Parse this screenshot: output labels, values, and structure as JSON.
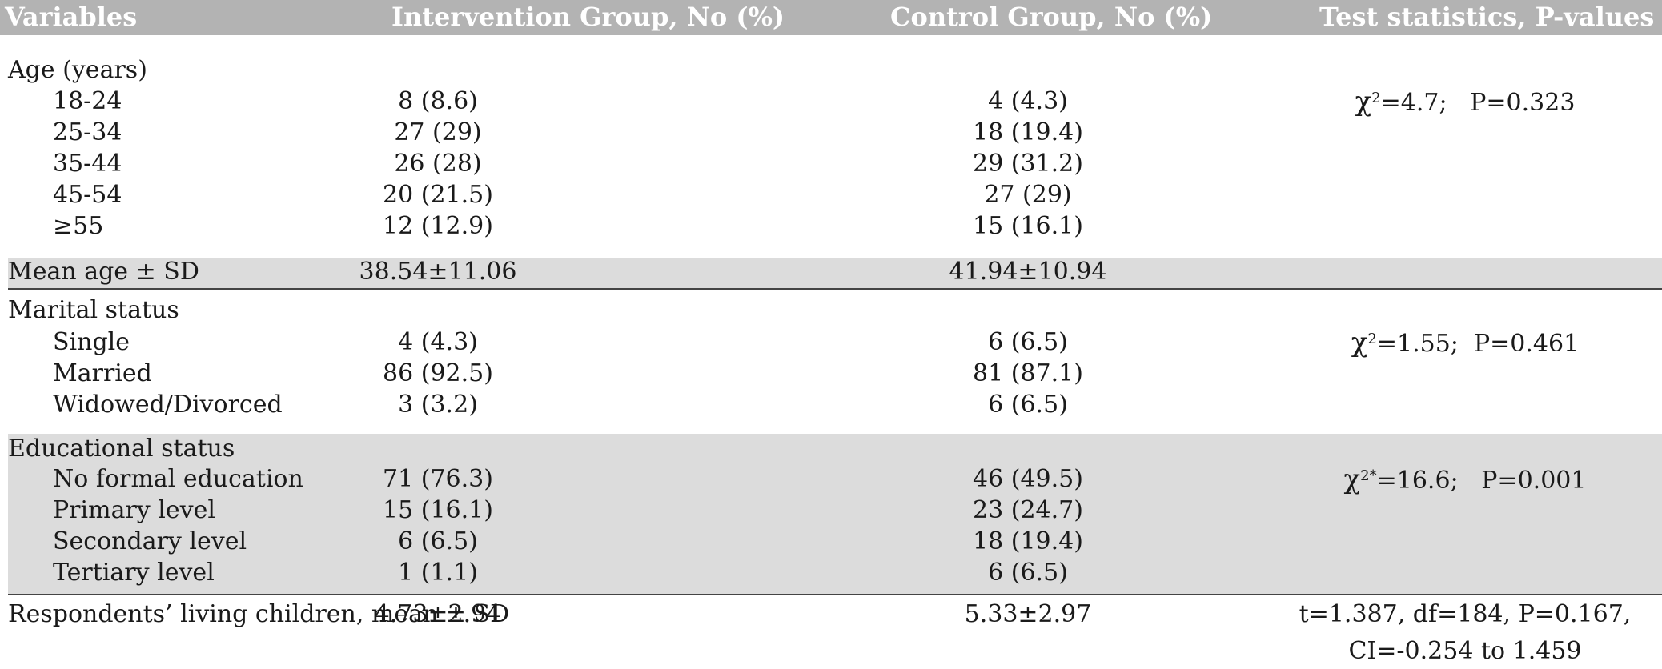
{
  "header": {
    "variables": "Variables",
    "intervention": "Intervention Group, No (%)",
    "control": "Control Group, No (%)",
    "test": "Test statistics, P-values"
  },
  "age": {
    "label": "Age (years)",
    "rows": [
      {
        "label": "18-24",
        "intervention": "8 (8.6)",
        "control": "4 (4.3)"
      },
      {
        "label": "25-34",
        "intervention": "27 (29)",
        "control": "18 (19.4)"
      },
      {
        "label": "35-44",
        "intervention": "26 (28)",
        "control": "29 (31.2)"
      },
      {
        "label": "45-54",
        "intervention": "20 (21.5)",
        "control": "27 (29)"
      },
      {
        "label": "≥55",
        "intervention": "12 (12.9)",
        "control": "15 (16.1)"
      }
    ],
    "test": {
      "symbol": "χ",
      "sup": "2",
      "value": "=4.7;",
      "p": "P=0.323"
    }
  },
  "mean_age": {
    "label": "Mean age ± SD",
    "intervention": "38.54±11.06",
    "control": "41.94±10.94"
  },
  "marital": {
    "label": "Marital status",
    "rows": [
      {
        "label": "Single",
        "intervention": "4 (4.3)",
        "control": "6 (6.5)"
      },
      {
        "label": "Married",
        "intervention": "86 (92.5)",
        "control": "81 (87.1)"
      },
      {
        "label": "Widowed/Divorced",
        "intervention": "3 (3.2)",
        "control": "6 (6.5)"
      }
    ],
    "test": {
      "symbol": "χ",
      "sup": "2",
      "value": "=1.55;",
      "p": "P=0.461"
    }
  },
  "education": {
    "label": "Educational status",
    "rows": [
      {
        "label": "No formal education",
        "intervention": "71 (76.3)",
        "control": "46 (49.5)"
      },
      {
        "label": "Primary level",
        "intervention": "15 (16.1)",
        "control": "23 (24.7)"
      },
      {
        "label": "Secondary level",
        "intervention": "6 (6.5)",
        "control": "18 (19.4)"
      },
      {
        "label": "Tertiary level",
        "intervention": "1 (1.1)",
        "control": "6 (6.5)"
      }
    ],
    "test": {
      "symbol": "χ",
      "sup": "2*",
      "value": "=16.6;",
      "p": "P=0.001"
    }
  },
  "children": {
    "label": "Respondents’ living children, mean ± SD",
    "intervention": "4.73±2.94",
    "control": "5.33±2.97",
    "test_line1": "t=1.387, df=184, P=0.167,",
    "test_line2": "CI=-0.254 to 1.459"
  }
}
